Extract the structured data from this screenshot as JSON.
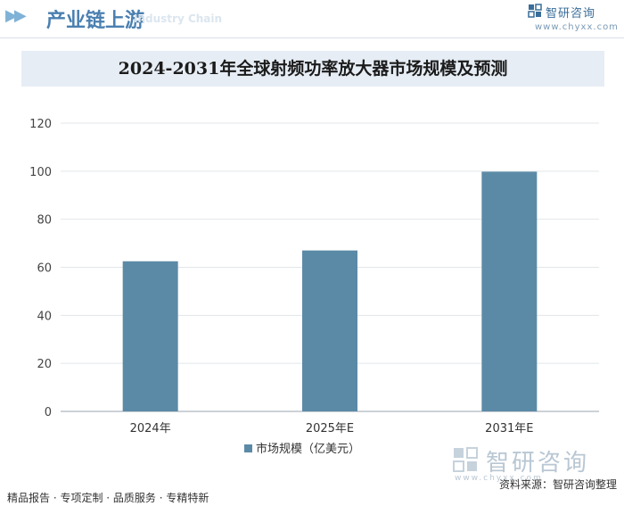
{
  "header": {
    "title": "产业链上游",
    "ghost_text": "Industry Chain"
  },
  "brand": {
    "name": "智研咨询",
    "url": "www.chyxx.com"
  },
  "footer": {
    "left": "精品报告 · 专项定制 · 品质服务 · 专精特新",
    "source": "资料来源：智研咨询整理"
  },
  "chart_data": {
    "type": "bar",
    "title": "2024-2031年全球射频功率放大器市场规模及预测",
    "categories": [
      "2024年",
      "2025年E",
      "2031年E"
    ],
    "series": [
      {
        "name": "市场规模（亿美元）",
        "values": [
          62.5,
          67,
          99.8
        ],
        "color": "#5b8aa6"
      }
    ],
    "ylim": [
      0,
      120
    ],
    "yticks": [
      0,
      20,
      40,
      60,
      80,
      100,
      120
    ],
    "grid": true,
    "legend_position": "bottom"
  }
}
